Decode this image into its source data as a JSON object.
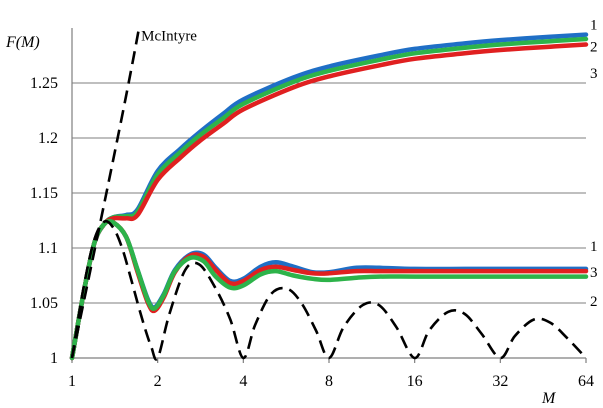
{
  "chart_data": {
    "type": "line",
    "xlabel": "M",
    "ylabel": "F(M)",
    "x_scale": "log2",
    "xticks": [
      1,
      2,
      4,
      8,
      16,
      32,
      64
    ],
    "yticks": [
      1,
      1.05,
      1.1,
      1.15,
      1.2,
      1.25
    ],
    "ytick_labels": [
      "1",
      "1.05",
      "1.1",
      "1.15",
      "1.2",
      "1.25"
    ],
    "xlim": [
      1,
      64
    ],
    "ylim": [
      1,
      1.3
    ],
    "grid": "horizontal",
    "series": [
      {
        "name": "1",
        "color": "#1f6fc6",
        "x": [
          1,
          1.1,
          1.2,
          1.3,
          1.4,
          1.55,
          1.7,
          2,
          2.4,
          2.8,
          3.4,
          4,
          6,
          8,
          12,
          16,
          24,
          32,
          48,
          64
        ],
        "y": [
          1.0,
          1.06,
          1.105,
          1.122,
          1.128,
          1.13,
          1.135,
          1.17,
          1.19,
          1.205,
          1.222,
          1.235,
          1.255,
          1.265,
          1.275,
          1.281,
          1.286,
          1.289,
          1.292,
          1.294
        ]
      },
      {
        "name": "2",
        "color": "#2db34a",
        "x": [
          1,
          1.1,
          1.2,
          1.3,
          1.4,
          1.55,
          1.7,
          2,
          2.4,
          2.8,
          3.4,
          4,
          6,
          8,
          12,
          16,
          24,
          32,
          48,
          64
        ],
        "y": [
          1.0,
          1.06,
          1.105,
          1.122,
          1.128,
          1.129,
          1.133,
          1.167,
          1.187,
          1.202,
          1.218,
          1.231,
          1.251,
          1.261,
          1.271,
          1.277,
          1.282,
          1.285,
          1.288,
          1.29
        ]
      },
      {
        "name": "3",
        "color": "#e02020",
        "x": [
          1,
          1.1,
          1.2,
          1.3,
          1.4,
          1.55,
          1.7,
          2,
          2.4,
          2.8,
          3.4,
          4,
          6,
          8,
          12,
          16,
          24,
          32,
          48,
          64
        ],
        "y": [
          1.0,
          1.06,
          1.105,
          1.122,
          1.127,
          1.127,
          1.13,
          1.162,
          1.182,
          1.197,
          1.213,
          1.226,
          1.246,
          1.256,
          1.266,
          1.272,
          1.277,
          1.28,
          1.283,
          1.285
        ]
      },
      {
        "name": "1",
        "color": "#1f6fc6",
        "x": [
          1,
          1.1,
          1.2,
          1.3,
          1.4,
          1.55,
          1.7,
          1.85,
          1.95,
          2.1,
          2.3,
          2.6,
          2.9,
          3.2,
          3.6,
          4,
          4.6,
          5.2,
          6,
          7,
          8,
          10,
          12,
          16,
          24,
          32,
          48,
          64
        ],
        "y": [
          1.0,
          1.06,
          1.105,
          1.122,
          1.123,
          1.11,
          1.08,
          1.053,
          1.046,
          1.058,
          1.08,
          1.094,
          1.094,
          1.082,
          1.07,
          1.072,
          1.083,
          1.087,
          1.083,
          1.078,
          1.078,
          1.082,
          1.082,
          1.081,
          1.081,
          1.081,
          1.081,
          1.081
        ]
      },
      {
        "name": "3",
        "color": "#e02020",
        "x": [
          1,
          1.1,
          1.2,
          1.3,
          1.4,
          1.55,
          1.7,
          1.85,
          1.95,
          2.1,
          2.3,
          2.6,
          2.9,
          3.2,
          3.6,
          4,
          4.6,
          5.2,
          6,
          7,
          8,
          10,
          12,
          16,
          24,
          32,
          48,
          64
        ],
        "y": [
          1.0,
          1.06,
          1.105,
          1.122,
          1.123,
          1.11,
          1.078,
          1.05,
          1.043,
          1.055,
          1.078,
          1.093,
          1.092,
          1.08,
          1.068,
          1.07,
          1.08,
          1.083,
          1.08,
          1.077,
          1.077,
          1.079,
          1.079,
          1.079,
          1.079,
          1.079,
          1.079,
          1.079
        ]
      },
      {
        "name": "2",
        "color": "#2db34a",
        "x": [
          1,
          1.1,
          1.2,
          1.3,
          1.4,
          1.55,
          1.7,
          1.85,
          1.95,
          2.1,
          2.3,
          2.6,
          2.9,
          3.2,
          3.6,
          4,
          4.6,
          5.2,
          6,
          7,
          8,
          10,
          12,
          16,
          24,
          32,
          48,
          64
        ],
        "y": [
          1.0,
          1.06,
          1.105,
          1.122,
          1.123,
          1.11,
          1.08,
          1.052,
          1.045,
          1.057,
          1.079,
          1.091,
          1.088,
          1.074,
          1.064,
          1.066,
          1.076,
          1.079,
          1.075,
          1.072,
          1.071,
          1.073,
          1.074,
          1.074,
          1.074,
          1.074,
          1.074,
          1.074
        ]
      }
    ],
    "reference_curves": [
      {
        "name": "McIntyre",
        "style": "dashed",
        "color": "#000000",
        "x": [
          1,
          1.25,
          1.5,
          1.65,
          1.72
        ],
        "y": [
          1.0,
          1.12,
          1.22,
          1.275,
          1.3
        ]
      },
      {
        "style": "dashed",
        "color": "#000000",
        "x": [
          1,
          1.1,
          1.2,
          1.3,
          1.4,
          1.5,
          1.6,
          1.7,
          1.8,
          1.9,
          2.0,
          2.2,
          2.5,
          2.8,
          3.2,
          3.6,
          4.0,
          4.4,
          5,
          5.7,
          6.4,
          7.2,
          8.0,
          9,
          10.5,
          12,
          13.8,
          16,
          18,
          21,
          24,
          27.5,
          32,
          36,
          42,
          48,
          55,
          64
        ],
        "y": [
          1.0,
          1.065,
          1.108,
          1.124,
          1.118,
          1.1,
          1.075,
          1.05,
          1.028,
          1.01,
          1.0,
          1.04,
          1.08,
          1.085,
          1.063,
          1.035,
          1.0,
          1.03,
          1.058,
          1.063,
          1.05,
          1.025,
          1.0,
          1.028,
          1.048,
          1.048,
          1.028,
          1.0,
          1.025,
          1.042,
          1.04,
          1.022,
          1.0,
          1.02,
          1.035,
          1.032,
          1.018,
          1.0
        ]
      }
    ],
    "annotations": [
      {
        "text": "McIntyre",
        "x": 1.75,
        "y": 1.293
      },
      {
        "text": "1",
        "x": 76,
        "y": 1.303
      },
      {
        "text": "2",
        "x": 76,
        "y": 1.283
      },
      {
        "text": "3",
        "x": 76,
        "y": 1.259
      },
      {
        "text": "1",
        "x": 76,
        "y": 1.102
      },
      {
        "text": "3",
        "x": 76,
        "y": 1.078
      },
      {
        "text": "2",
        "x": 76,
        "y": 1.052
      }
    ]
  }
}
